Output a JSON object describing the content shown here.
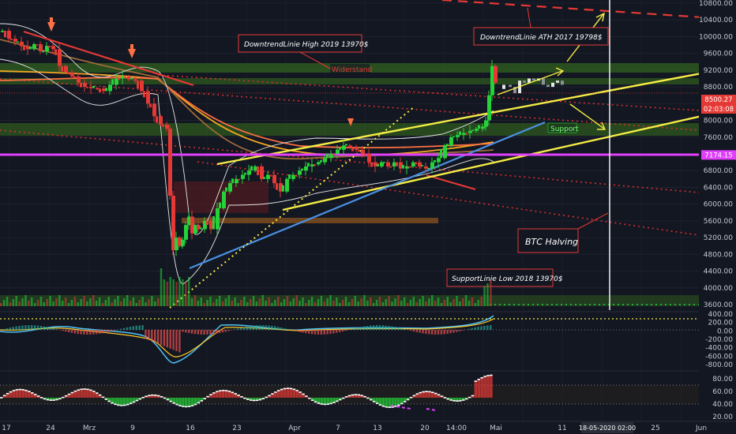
{
  "chart_data": {
    "type": "candlestick",
    "main_pane": {
      "ylim": [
        3400,
        10800
      ],
      "y_ticks": [
        3600,
        4000,
        4400,
        4800,
        5200,
        5600,
        6000,
        6400,
        6800,
        7200,
        7600,
        8000,
        8400,
        8800,
        9200,
        9600,
        10000,
        10400,
        10800
      ],
      "y_tick_labels": [
        "3600.00",
        "4000.00",
        "4400.00",
        "4800.00",
        "5200.00",
        "5600.00",
        "6000.00",
        "6400.00",
        "6800.00",
        "7200.00",
        "7600.00",
        "8000.00",
        "8400.00",
        "8800.00",
        "9200.00",
        "9600.00",
        "10000.00",
        "10400.00",
        "10800.00"
      ],
      "price_tags": [
        {
          "value": 8500.27,
          "label": "8500.27",
          "color": "#e53935"
        },
        {
          "value": 8420,
          "label": "02:03:08",
          "color": "#e53935"
        },
        {
          "value": 7174.15,
          "label": "7174.15",
          "color": "#e040fb"
        }
      ],
      "close_path": [
        [
          0,
          10140
        ],
        [
          8,
          9950
        ],
        [
          16,
          9880
        ],
        [
          24,
          9770
        ],
        [
          32,
          9700
        ],
        [
          40,
          9820
        ],
        [
          48,
          9650
        ],
        [
          56,
          9780
        ],
        [
          64,
          9700
        ],
        [
          72,
          9300
        ],
        [
          80,
          9150
        ],
        [
          88,
          9050
        ],
        [
          96,
          8900
        ],
        [
          104,
          8800
        ],
        [
          112,
          8770
        ],
        [
          120,
          8760
        ],
        [
          128,
          8700
        ],
        [
          136,
          8850
        ],
        [
          144,
          9000
        ],
        [
          152,
          9050
        ],
        [
          160,
          8980
        ],
        [
          168,
          8950
        ],
        [
          176,
          8700
        ],
        [
          184,
          8400
        ],
        [
          192,
          8100
        ],
        [
          200,
          7900
        ],
        [
          208,
          7800
        ],
        [
          212,
          6200
        ],
        [
          216,
          4900
        ],
        [
          220,
          5200
        ],
        [
          224,
          5000
        ],
        [
          228,
          5150
        ],
        [
          232,
          5500
        ],
        [
          236,
          5700
        ],
        [
          240,
          5300
        ],
        [
          244,
          5500
        ],
        [
          248,
          5400
        ],
        [
          256,
          5600
        ],
        [
          264,
          5400
        ],
        [
          272,
          5900
        ],
        [
          280,
          6300
        ],
        [
          288,
          6500
        ],
        [
          296,
          6600
        ],
        [
          304,
          6700
        ],
        [
          312,
          6800
        ],
        [
          320,
          6900
        ],
        [
          328,
          6600
        ],
        [
          336,
          6700
        ],
        [
          344,
          6500
        ],
        [
          352,
          6300
        ],
        [
          360,
          6600
        ],
        [
          368,
          6700
        ],
        [
          376,
          6800
        ],
        [
          384,
          6900
        ],
        [
          392,
          6950
        ],
        [
          400,
          7000
        ],
        [
          408,
          7100
        ],
        [
          416,
          7200
        ],
        [
          424,
          7300
        ],
        [
          432,
          7400
        ],
        [
          440,
          7350
        ],
        [
          448,
          7300
        ],
        [
          456,
          7200
        ],
        [
          464,
          7000
        ],
        [
          472,
          6900
        ],
        [
          480,
          7000
        ],
        [
          488,
          6900
        ],
        [
          496,
          7000
        ],
        [
          504,
          6850
        ],
        [
          512,
          6900
        ],
        [
          520,
          7000
        ],
        [
          528,
          6900
        ],
        [
          536,
          6850
        ],
        [
          544,
          7000
        ],
        [
          552,
          7100
        ],
        [
          560,
          7400
        ],
        [
          568,
          7600
        ],
        [
          576,
          7650
        ],
        [
          584,
          7700
        ],
        [
          592,
          7750
        ],
        [
          600,
          7800
        ],
        [
          608,
          7850
        ],
        [
          612,
          8000
        ],
        [
          616,
          8600
        ],
        [
          620,
          9300
        ],
        [
          624,
          8900
        ]
      ],
      "projection_path": [
        [
          628,
          8750
        ],
        [
          636,
          8850
        ],
        [
          644,
          8800
        ],
        [
          650,
          8650
        ],
        [
          656,
          8950
        ],
        [
          662,
          8900
        ],
        [
          668,
          9000
        ],
        [
          674,
          8950
        ],
        [
          680,
          9000
        ],
        [
          686,
          8850
        ],
        [
          692,
          8800
        ],
        [
          698,
          8900
        ],
        [
          704,
          8950
        ],
        [
          710,
          8850
        ]
      ],
      "annotations": [
        {
          "text": "DowntrendLinie High 2019 13970$"
        },
        {
          "text": "DowntrendLinie ATH 2017 19798$"
        },
        {
          "text": "Widerstand"
        },
        {
          "text": "Support"
        },
        {
          "text": "BTC Halving"
        },
        {
          "text": "SupportLinie Low 2018 13970$"
        }
      ]
    },
    "macd_pane": {
      "ylim": [
        -850,
        450
      ],
      "y_ticks": [
        400,
        200,
        0,
        -200,
        -400,
        -600,
        -800
      ],
      "y_tick_labels": [
        "400.00",
        "200.00",
        "0.00",
        "-200.00",
        "-400.00",
        "-600.00",
        "-800.00"
      ]
    },
    "rsi_pane": {
      "ylim": [
        15,
        95
      ],
      "y_ticks": [
        80,
        60,
        40,
        20
      ],
      "y_tick_labels": [
        "80.00",
        "60.00",
        "40.00",
        "20.00"
      ]
    },
    "x_axis": {
      "tick_labels": [
        "17",
        "24",
        "Mrz",
        "9",
        "16",
        "23",
        "Apr",
        "7",
        "13",
        "20",
        "14:00",
        "Mai",
        "11",
        "18-05-2020   02:00",
        "25",
        "Jun"
      ]
    },
    "colors": {
      "background": "#131722",
      "up": "#26d23a",
      "down": "#e53935",
      "trendline_yellow": "#f5ec45",
      "support_line_blue": "#4a90e2",
      "support_magenta": "#e040fb",
      "bands": "#e6e6e6",
      "zones_green": "#3b7a1c"
    }
  }
}
